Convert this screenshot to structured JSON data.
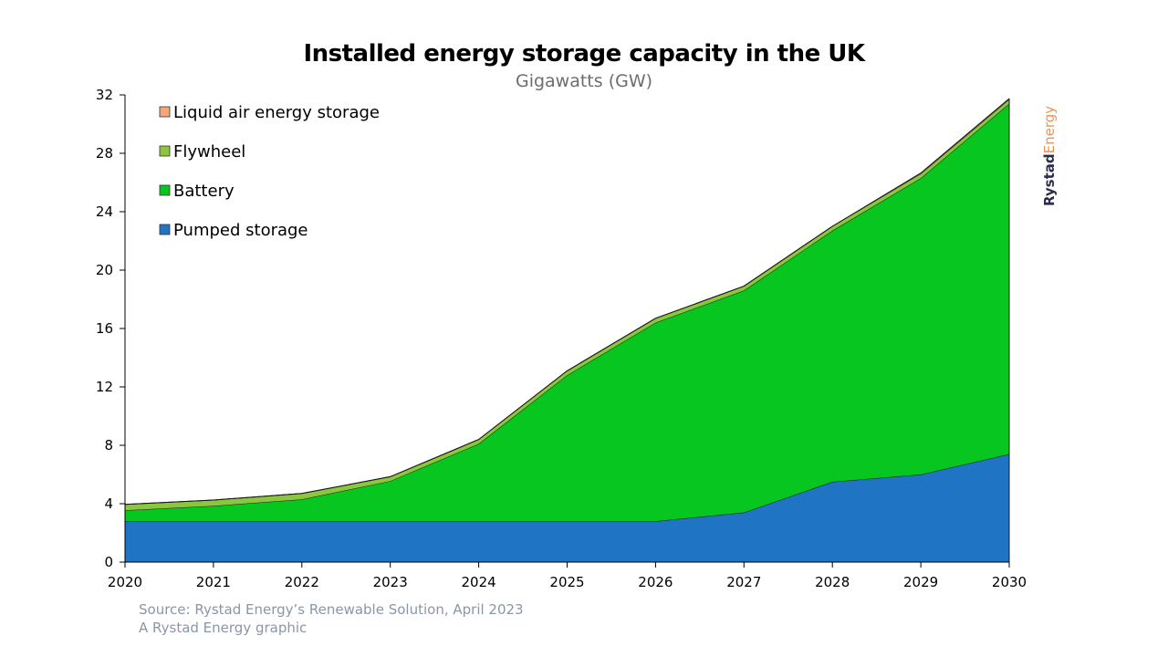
{
  "chart_data": {
    "type": "area",
    "stacked": true,
    "title": "Installed energy storage capacity in the UK",
    "subtitle": "Gigawatts (GW)",
    "x": [
      2020,
      2021,
      2022,
      2023,
      2024,
      2025,
      2026,
      2027,
      2028,
      2029,
      2030
    ],
    "ylim": [
      0,
      32
    ],
    "yticks": [
      0,
      4,
      8,
      12,
      16,
      20,
      24,
      28,
      32
    ],
    "grid": false,
    "legend_position": "top-left",
    "series": [
      {
        "name": "Pumped storage",
        "color": "#1f74c4",
        "values": [
          2.8,
          2.8,
          2.8,
          2.8,
          2.8,
          2.8,
          2.8,
          3.4,
          5.5,
          6.0,
          7.4
        ]
      },
      {
        "name": "Battery",
        "color": "#08c620",
        "values": [
          0.75,
          1.05,
          1.5,
          2.75,
          5.3,
          10.0,
          13.6,
          15.2,
          17.2,
          20.3,
          24.0
        ]
      },
      {
        "name": "Flywheel",
        "color": "#8cc63f",
        "values": [
          0.4,
          0.4,
          0.4,
          0.3,
          0.3,
          0.3,
          0.3,
          0.3,
          0.3,
          0.3,
          0.3
        ]
      },
      {
        "name": "Liquid air energy storage",
        "color": "#f4a77a",
        "values": [
          0,
          0,
          0,
          0,
          0,
          0,
          0,
          0,
          0,
          0.05,
          0.05
        ]
      }
    ],
    "source": "Source: Rystad Energy’s Renewable Solution, April 2023",
    "credit": "A Rystad Energy graphic"
  },
  "brand": {
    "part1": "Rystad",
    "part2": "Energy"
  }
}
